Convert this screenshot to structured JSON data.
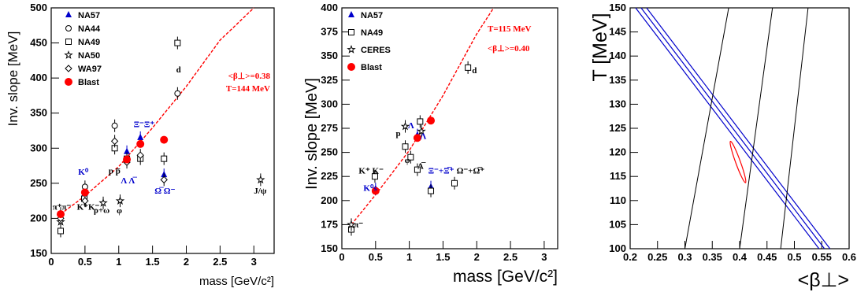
{
  "colors": {
    "red": "#ff0000",
    "blue": "#0000cc",
    "black": "#000000"
  },
  "chart_data": [
    {
      "type": "scatter",
      "panel": "left",
      "xlabel": "mass  [GeV/c²]",
      "ylabel": "Inv. slope  [MeV]",
      "xlim": [
        0,
        3.3
      ],
      "ylim": [
        150,
        500
      ],
      "xticks": [
        "0",
        "0.5",
        "1",
        "1.5",
        "2",
        "2.5",
        "3"
      ],
      "yticks": [
        "150",
        "200",
        "250",
        "300",
        "350",
        "400",
        "450",
        "500"
      ],
      "legend": [
        "NA57",
        "NA44",
        "NA49",
        "NA50",
        "WA97",
        "Blast"
      ],
      "fit_label_1": "<β⊥>=0.38",
      "fit_label_2": "T=144 MeV",
      "series": [
        {
          "name": "NA57",
          "marker": "triangle",
          "color": "#0000cc",
          "points": [
            [
              0.5,
              236
            ],
            [
              1.12,
              295
            ],
            [
              1.32,
              315
            ],
            [
              1.67,
              262
            ]
          ]
        },
        {
          "name": "NA44",
          "marker": "circle",
          "points": [
            [
              0.14,
              207
            ],
            [
              0.5,
              245
            ],
            [
              0.94,
              332
            ],
            [
              1.87,
              378
            ]
          ]
        },
        {
          "name": "NA49",
          "marker": "square",
          "points": [
            [
              0.14,
              182
            ],
            [
              0.49,
              228
            ],
            [
              0.94,
              300
            ],
            [
              1.12,
              285
            ],
            [
              1.32,
              285
            ],
            [
              1.67,
              285
            ],
            [
              1.87,
              450
            ]
          ]
        },
        {
          "name": "NA50",
          "marker": "star",
          "points": [
            [
              0.14,
              195
            ],
            [
              0.77,
              222
            ],
            [
              1.02,
              225
            ],
            [
              3.1,
              255
            ]
          ]
        },
        {
          "name": "WA97",
          "marker": "diamond",
          "points": [
            [
              0.14,
              200
            ],
            [
              0.5,
              225
            ],
            [
              0.94,
              310
            ],
            [
              1.12,
              280
            ],
            [
              1.32,
              290
            ],
            [
              1.67,
              255
            ]
          ]
        },
        {
          "name": "Blast",
          "marker": "circle-filled",
          "color": "#ff0000",
          "points": [
            [
              0.14,
              206
            ],
            [
              0.5,
              237
            ],
            [
              1.12,
              284
            ],
            [
              1.32,
              306
            ],
            [
              1.67,
              312
            ]
          ]
        }
      ],
      "fit": {
        "color": "#ff0000",
        "x": [
          0.14,
          0.5,
          1.0,
          1.5,
          2.0,
          2.5,
          3.0
        ],
        "y": [
          206,
          232,
          274,
          329,
          388,
          454,
          500
        ]
      },
      "labels": [
        {
          "text": "π⁺π⁻",
          "x": 0.02,
          "y": 212
        },
        {
          "text": "K⁰",
          "x": 0.4,
          "y": 262,
          "color": "#0000cc"
        },
        {
          "text": "K⁺K⁻",
          "x": 0.38,
          "y": 212
        },
        {
          "text": "p p̅",
          "x": 0.85,
          "y": 264
        },
        {
          "text": "Λ Λ̅",
          "x": 1.03,
          "y": 250,
          "color": "#0000cc"
        },
        {
          "text": "Ξ⁻Ξ⁺",
          "x": 1.22,
          "y": 330,
          "color": "#0000cc"
        },
        {
          "text": "ρ+ω",
          "x": 0.63,
          "y": 208
        },
        {
          "text": "φ",
          "x": 0.97,
          "y": 207
        },
        {
          "text": "Ω̅ Ω⁻",
          "x": 1.53,
          "y": 235,
          "color": "#0000cc"
        },
        {
          "text": "J/ψ",
          "x": 3.0,
          "y": 235
        },
        {
          "text": "d",
          "x": 1.85,
          "y": 408
        }
      ]
    },
    {
      "type": "scatter",
      "panel": "middle",
      "xlabel": "mass  [GeV/c²]",
      "ylabel": "Inv. slope  [MeV]",
      "xlim": [
        0,
        3.2
      ],
      "ylim": [
        150,
        400
      ],
      "xticks": [
        "0",
        "0.5",
        "1",
        "1.5",
        "2",
        "2.5",
        "3"
      ],
      "yticks": [
        "150",
        "175",
        "200",
        "225",
        "250",
        "275",
        "300",
        "325",
        "350",
        "375",
        "400"
      ],
      "legend": [
        "NA57",
        "NA49",
        "CERES",
        "Blast"
      ],
      "fit_label_1": "T=115 MeV",
      "fit_label_2": "<β⊥>=0.40",
      "series": [
        {
          "name": "NA57",
          "marker": "triangle",
          "color": "#0000cc",
          "points": [
            [
              0.5,
              212
            ],
            [
              1.12,
              268
            ],
            [
              1.32,
              214
            ]
          ]
        },
        {
          "name": "NA49",
          "marker": "square",
          "points": [
            [
              0.14,
              170
            ],
            [
              0.49,
              225
            ],
            [
              0.94,
              256
            ],
            [
              1.02,
              245
            ],
            [
              1.12,
              232
            ],
            [
              1.16,
              282
            ],
            [
              1.32,
              210
            ],
            [
              1.67,
              218
            ],
            [
              1.87,
              338
            ]
          ]
        },
        {
          "name": "CERES",
          "marker": "star",
          "points": [
            [
              0.14,
              175
            ],
            [
              0.94,
              277
            ],
            [
              1.18,
              272
            ]
          ]
        },
        {
          "name": "Blast",
          "marker": "circle-filled",
          "color": "#ff0000",
          "points": [
            [
              0.5,
              210
            ],
            [
              1.12,
              265
            ],
            [
              1.32,
              283
            ]
          ]
        }
      ],
      "fit": {
        "color": "#ff0000",
        "x": [
          0.14,
          0.5,
          1.0,
          1.5,
          2.0,
          2.25
        ],
        "y": [
          175,
          206,
          252,
          309,
          373,
          400
        ]
      },
      "labels": [
        {
          "text": "π⁻",
          "x": 0.18,
          "y": 172
        },
        {
          "text": "K⁺ K⁻",
          "x": 0.25,
          "y": 228
        },
        {
          "text": "K⁰s",
          "x": 0.32,
          "y": 210,
          "color": "#0000cc"
        },
        {
          "text": "p",
          "x": 0.8,
          "y": 267
        },
        {
          "text": "Λ",
          "x": 0.98,
          "y": 275,
          "color": "#0000cc"
        },
        {
          "text": "Λ",
          "x": 1.16,
          "y": 264,
          "color": "#0000cc"
        },
        {
          "text": "φ",
          "x": 0.93,
          "y": 239
        },
        {
          "text": "Λ̅",
          "x": 1.12,
          "y": 233
        },
        {
          "text": "Ξ⁻+Ξ̅⁺",
          "x": 1.28,
          "y": 228,
          "color": "#0000cc"
        },
        {
          "text": "Ω⁻+Ω̅⁺",
          "x": 1.7,
          "y": 228
        },
        {
          "text": "d",
          "x": 1.93,
          "y": 332
        }
      ]
    },
    {
      "type": "line",
      "panel": "right",
      "xlabel": "<β⊥>",
      "ylabel": "T  [MeV]",
      "xlim": [
        0.2,
        0.6
      ],
      "ylim": [
        100,
        150
      ],
      "xticks": [
        "0.2",
        "0.25",
        "0.3",
        "0.35",
        "0.4",
        "0.45",
        "0.5",
        "0.55",
        "0.6"
      ],
      "yticks": [
        "100",
        "105",
        "110",
        "115",
        "120",
        "125",
        "130",
        "135",
        "140",
        "145",
        "150"
      ],
      "blue_lines": [
        {
          "x": [
            0.21,
            0.545
          ],
          "y": [
            150,
            100
          ]
        },
        {
          "x": [
            0.22,
            0.555
          ],
          "y": [
            150,
            100
          ]
        },
        {
          "x": [
            0.23,
            0.565
          ],
          "y": [
            150,
            100
          ]
        }
      ],
      "black_lines": [
        {
          "x": [
            0.3,
            0.38
          ],
          "y": [
            100,
            150
          ]
        },
        {
          "x": [
            0.4,
            0.46
          ],
          "y": [
            100,
            150
          ]
        },
        {
          "x": [
            0.475,
            0.525
          ],
          "y": [
            100,
            150
          ]
        }
      ],
      "contour": {
        "color": "#ff0000",
        "center": [
          0.397,
          118
        ],
        "label": "red ellipse"
      }
    }
  ]
}
